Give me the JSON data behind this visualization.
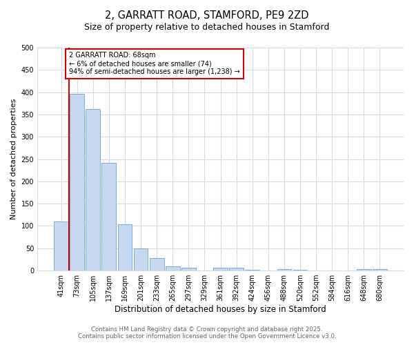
{
  "title1": "2, GARRATT ROAD, STAMFORD, PE9 2ZD",
  "title2": "Size of property relative to detached houses in Stamford",
  "xlabel": "Distribution of detached houses by size in Stamford",
  "ylabel": "Number of detached properties",
  "bar_labels": [
    "41sqm",
    "73sqm",
    "105sqm",
    "137sqm",
    "169sqm",
    "201sqm",
    "233sqm",
    "265sqm",
    "297sqm",
    "329sqm",
    "361sqm",
    "392sqm",
    "424sqm",
    "456sqm",
    "488sqm",
    "520sqm",
    "552sqm",
    "584sqm",
    "616sqm",
    "648sqm",
    "680sqm"
  ],
  "bar_values": [
    110,
    397,
    363,
    242,
    104,
    50,
    28,
    9,
    6,
    0,
    6,
    6,
    2,
    0,
    3,
    2,
    0,
    0,
    0,
    3,
    3
  ],
  "bar_color": "#c5d8f0",
  "bar_edge_color": "#7bafd4",
  "vline_x": 0.5,
  "vline_color": "#cc0000",
  "annotation_text": "2 GARRATT ROAD: 68sqm\n← 6% of detached houses are smaller (74)\n94% of semi-detached houses are larger (1,238) →",
  "annotation_box_color": "#ffffff",
  "annotation_box_edge_color": "#cc0000",
  "ylim": [
    0,
    500
  ],
  "yticks": [
    0,
    50,
    100,
    150,
    200,
    250,
    300,
    350,
    400,
    450,
    500
  ],
  "footer1": "Contains HM Land Registry data © Crown copyright and database right 2025.",
  "footer2": "Contains public sector information licensed under the Open Government Licence v3.0.",
  "background_color": "#ffffff",
  "plot_background_color": "#ffffff",
  "grid_color": "#d0dce8"
}
